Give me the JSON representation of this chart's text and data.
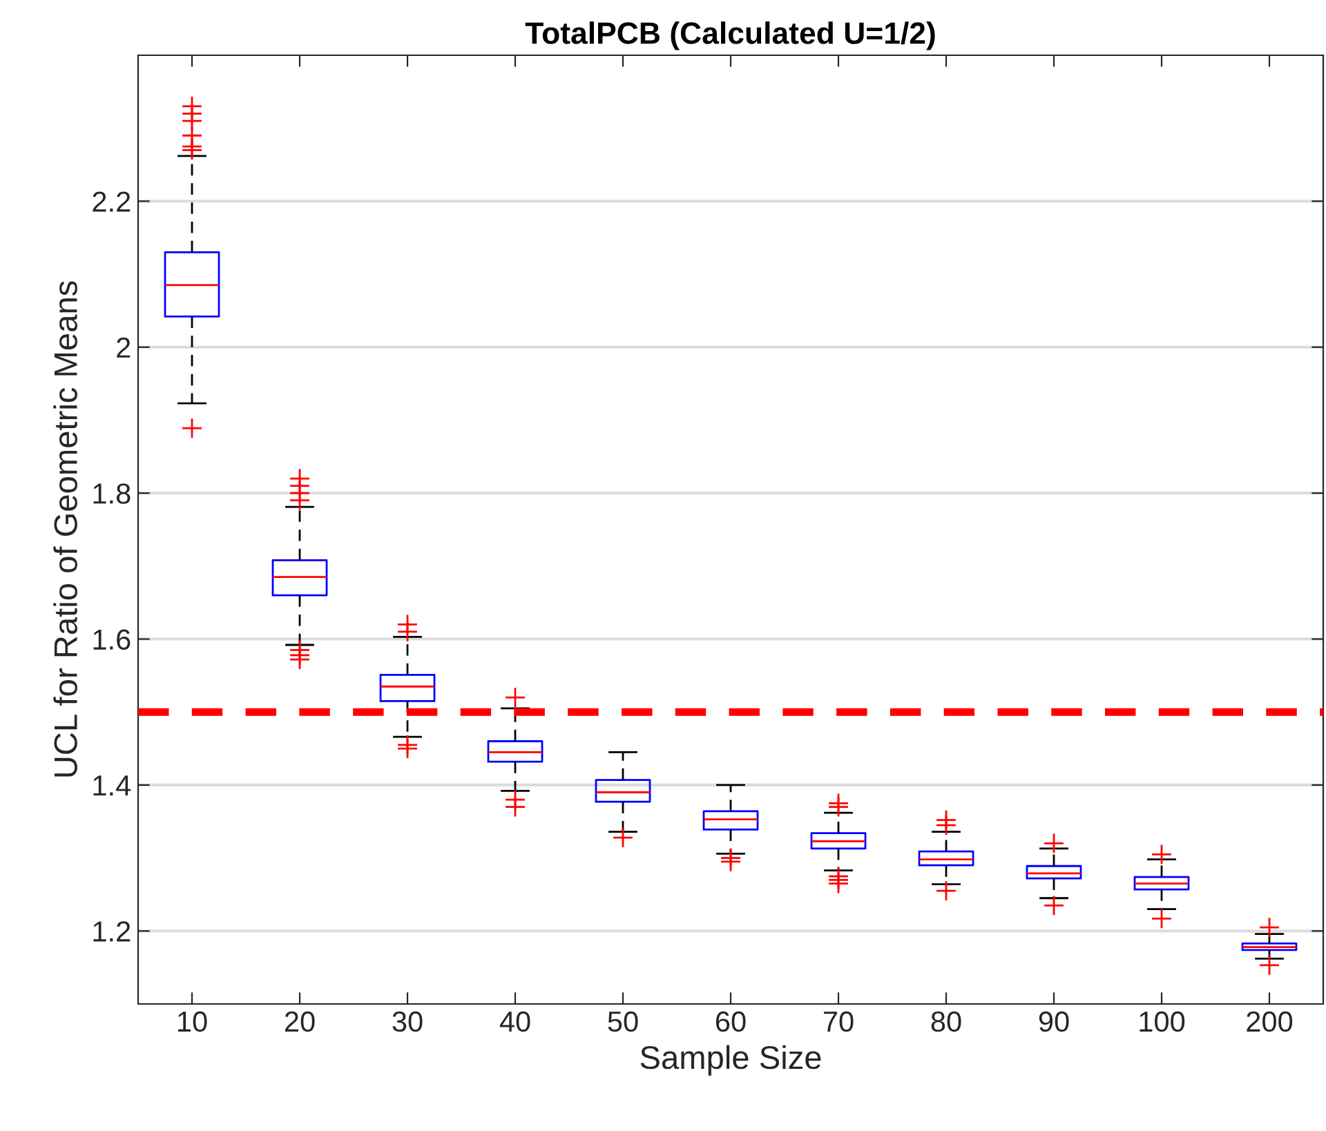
{
  "chart_data": {
    "type": "box",
    "title": "TotalPCB (Calculated U=1/2)",
    "xlabel": "Sample Size",
    "ylabel": "UCL for Ratio of Geometric Means",
    "categories": [
      "10",
      "20",
      "30",
      "40",
      "50",
      "60",
      "70",
      "80",
      "90",
      "100",
      "200"
    ],
    "series": [
      {
        "color": "#0000ff",
        "boxes": [
          {
            "low": 1.923,
            "q1": 2.042,
            "median": 2.085,
            "q3": 2.13,
            "high": 2.262,
            "outliers": [
              1.889,
              2.27,
              2.275,
              2.29,
              2.31,
              2.32,
              2.33
            ]
          },
          {
            "low": 1.592,
            "q1": 1.66,
            "median": 1.685,
            "q3": 1.708,
            "high": 1.781,
            "outliers": [
              1.572,
              1.578,
              1.585,
              1.79,
              1.8,
              1.81,
              1.82
            ]
          },
          {
            "low": 1.466,
            "q1": 1.515,
            "median": 1.535,
            "q3": 1.551,
            "high": 1.603,
            "outliers": [
              1.45,
              1.455,
              1.61,
              1.62
            ]
          },
          {
            "low": 1.392,
            "q1": 1.432,
            "median": 1.445,
            "q3": 1.46,
            "high": 1.505,
            "outliers": [
              1.37,
              1.38,
              1.52
            ]
          },
          {
            "low": 1.336,
            "q1": 1.377,
            "median": 1.39,
            "q3": 1.407,
            "high": 1.445,
            "outliers": [
              1.328
            ]
          },
          {
            "low": 1.306,
            "q1": 1.339,
            "median": 1.353,
            "q3": 1.364,
            "high": 1.4,
            "outliers": [
              1.295,
              1.3
            ]
          },
          {
            "low": 1.283,
            "q1": 1.313,
            "median": 1.323,
            "q3": 1.334,
            "high": 1.362,
            "outliers": [
              1.265,
              1.27,
              1.275,
              1.37,
              1.375
            ]
          },
          {
            "low": 1.264,
            "q1": 1.29,
            "median": 1.298,
            "q3": 1.309,
            "high": 1.336,
            "outliers": [
              1.255,
              1.345,
              1.352
            ]
          },
          {
            "low": 1.245,
            "q1": 1.272,
            "median": 1.279,
            "q3": 1.289,
            "high": 1.313,
            "outliers": [
              1.235,
              1.32
            ]
          },
          {
            "low": 1.23,
            "q1": 1.257,
            "median": 1.265,
            "q3": 1.274,
            "high": 1.298,
            "outliers": [
              1.217,
              1.305
            ]
          },
          {
            "low": 1.162,
            "q1": 1.174,
            "median": 1.178,
            "q3": 1.183,
            "high": 1.196,
            "outliers": [
              1.153,
              1.205
            ]
          }
        ]
      }
    ],
    "ylim": [
      1.1,
      2.4
    ],
    "yticks": [
      1.2,
      1.4,
      1.6,
      1.8,
      {
        "value": 2,
        "label": "2"
      },
      2.2
    ],
    "grid": "y",
    "ref_lines": [
      {
        "axis": "y",
        "value": 1.5,
        "color": "#ff0000",
        "line_style": "dashed"
      }
    ]
  }
}
